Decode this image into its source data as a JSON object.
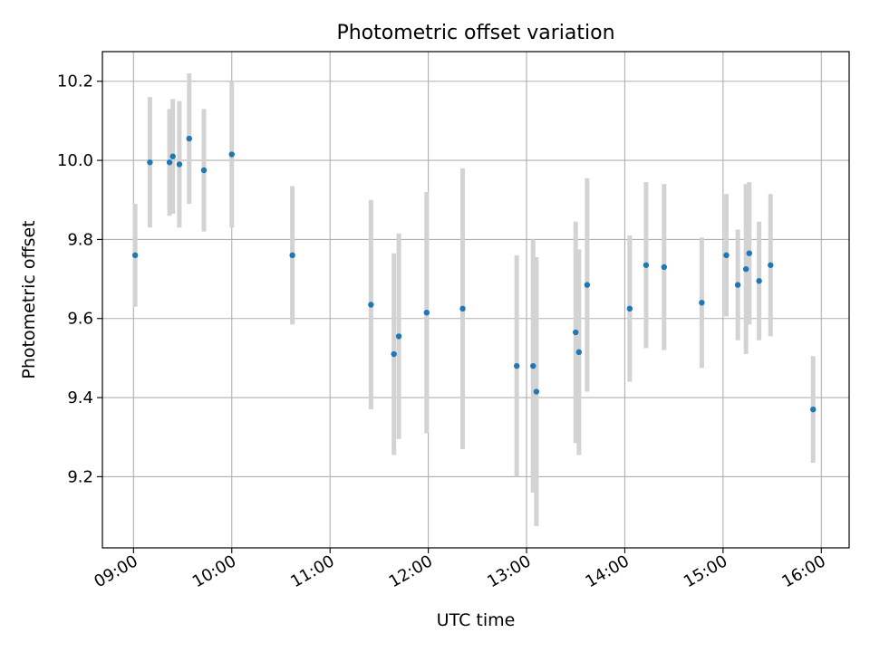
{
  "chart_data": {
    "type": "scatter",
    "title": "Photometric offset variation",
    "xlabel": "UTC time",
    "ylabel": "Photometric offset",
    "x_ticks": [
      "09:00",
      "10:00",
      "11:00",
      "12:00",
      "13:00",
      "14:00",
      "15:00",
      "16:00"
    ],
    "y_ticks": [
      "9.2",
      "9.4",
      "9.6",
      "9.8",
      "10.0",
      "10.2"
    ],
    "xlim": [
      "08:41",
      "16:17"
    ],
    "ylim": [
      9.02,
      10.275
    ],
    "grid": true,
    "point_color": "#1f77b4",
    "errorbar_color": "#d3d3d3",
    "series": [
      {
        "points": [
          {
            "t": "09:01",
            "y": 9.76,
            "err": 0.13
          },
          {
            "t": "09:10",
            "y": 9.995,
            "err": 0.165
          },
          {
            "t": "09:22",
            "y": 9.995,
            "err": 0.135
          },
          {
            "t": "09:24",
            "y": 10.01,
            "err": 0.145
          },
          {
            "t": "09:28",
            "y": 9.99,
            "err": 0.16
          },
          {
            "t": "09:34",
            "y": 10.055,
            "err": 0.165
          },
          {
            "t": "09:43",
            "y": 9.975,
            "err": 0.155
          },
          {
            "t": "10:00",
            "y": 10.015,
            "err": 0.185
          },
          {
            "t": "10:37",
            "y": 9.76,
            "err": 0.175
          },
          {
            "t": "11:25",
            "y": 9.635,
            "err": 0.265
          },
          {
            "t": "11:39",
            "y": 9.51,
            "err": 0.255
          },
          {
            "t": "11:42",
            "y": 9.555,
            "err": 0.26
          },
          {
            "t": "11:59",
            "y": 9.615,
            "err": 0.305
          },
          {
            "t": "12:21",
            "y": 9.625,
            "err": 0.355
          },
          {
            "t": "12:54",
            "y": 9.48,
            "err": 0.28
          },
          {
            "t": "13:04",
            "y": 9.48,
            "err": 0.32
          },
          {
            "t": "13:06",
            "y": 9.415,
            "err": 0.34
          },
          {
            "t": "13:30",
            "y": 9.565,
            "err": 0.28
          },
          {
            "t": "13:32",
            "y": 9.515,
            "err": 0.26
          },
          {
            "t": "13:37",
            "y": 9.685,
            "err": 0.27
          },
          {
            "t": "14:03",
            "y": 9.625,
            "err": 0.185
          },
          {
            "t": "14:13",
            "y": 9.735,
            "err": 0.21
          },
          {
            "t": "14:24",
            "y": 9.73,
            "err": 0.21
          },
          {
            "t": "14:47",
            "y": 9.64,
            "err": 0.165
          },
          {
            "t": "15:02",
            "y": 9.76,
            "err": 0.155
          },
          {
            "t": "15:09",
            "y": 9.685,
            "err": 0.14
          },
          {
            "t": "15:14",
            "y": 9.725,
            "err": 0.215
          },
          {
            "t": "15:16",
            "y": 9.765,
            "err": 0.18
          },
          {
            "t": "15:22",
            "y": 9.695,
            "err": 0.15
          },
          {
            "t": "15:29",
            "y": 9.735,
            "err": 0.18
          },
          {
            "t": "15:55",
            "y": 9.37,
            "err": 0.135
          }
        ]
      }
    ]
  }
}
